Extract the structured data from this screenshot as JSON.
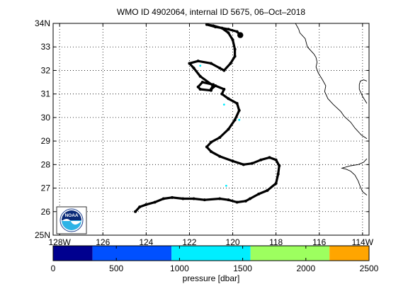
{
  "title": "WMO ID 4902064, internal ID 5675, 06–Oct–2018",
  "map": {
    "lon_range": [
      -128.3,
      -113.7
    ],
    "lat_range": [
      25,
      34
    ],
    "lon_ticks": [
      -128,
      -126,
      -124,
      -122,
      -120,
      -118,
      -116,
      -114
    ],
    "lon_tick_labels": [
      "128W",
      "126",
      "124",
      "122",
      "120",
      "118",
      "116",
      "114W"
    ],
    "lat_ticks": [
      25,
      26,
      27,
      28,
      29,
      30,
      31,
      32,
      33,
      34
    ],
    "lat_tick_labels": [
      "25N",
      "26",
      "27",
      "28",
      "29",
      "30",
      "31",
      "32",
      "33",
      "34N"
    ],
    "grid": true,
    "grid_style": "dotted",
    "coastline_color": "#000000",
    "track_color": "#000000",
    "coastline": [
      [
        -117.1,
        34.0
      ],
      [
        -116.95,
        33.75
      ],
      [
        -116.9,
        33.6
      ],
      [
        -116.65,
        33.35
      ],
      [
        -116.55,
        33.0
      ],
      [
        -116.25,
        32.7
      ],
      [
        -116.15,
        32.55
      ],
      [
        -116.1,
        32.35
      ],
      [
        -116.15,
        32.15
      ],
      [
        -116.05,
        31.9
      ],
      [
        -115.85,
        31.6
      ],
      [
        -115.7,
        31.35
      ],
      [
        -115.75,
        31.1
      ],
      [
        -115.6,
        30.8
      ],
      [
        -115.35,
        30.55
      ],
      [
        -115.0,
        30.25
      ],
      [
        -114.85,
        30.05
      ],
      [
        -114.55,
        29.8
      ],
      [
        -114.35,
        29.55
      ],
      [
        -114.05,
        29.25
      ],
      [
        -113.8,
        29.1
      ]
    ],
    "coast_upper_right": [
      [
        -113.8,
        31.55
      ],
      [
        -113.95,
        31.6
      ],
      [
        -114.1,
        31.55
      ],
      [
        -114.15,
        31.4
      ],
      [
        -114.15,
        31.2
      ],
      [
        -114.0,
        30.9
      ],
      [
        -113.8,
        30.6
      ]
    ],
    "coast_baja_tip": [
      [
        -113.8,
        26.7
      ],
      [
        -114.0,
        26.85
      ],
      [
        -114.1,
        27.05
      ],
      [
        -114.2,
        27.3
      ],
      [
        -114.35,
        27.55
      ],
      [
        -114.55,
        27.72
      ],
      [
        -114.75,
        27.8
      ],
      [
        -114.95,
        27.85
      ],
      [
        -114.55,
        27.95
      ],
      [
        -114.2,
        28.0
      ],
      [
        -113.95,
        28.1
      ],
      [
        -113.8,
        28.25
      ]
    ],
    "float_track": [
      [
        -124.5,
        26.0
      ],
      [
        -124.3,
        26.2
      ],
      [
        -124.0,
        26.3
      ],
      [
        -123.6,
        26.4
      ],
      [
        -123.2,
        26.55
      ],
      [
        -122.8,
        26.6
      ],
      [
        -122.3,
        26.55
      ],
      [
        -121.8,
        26.55
      ],
      [
        -121.3,
        26.5
      ],
      [
        -120.6,
        26.55
      ],
      [
        -120.2,
        26.5
      ],
      [
        -119.8,
        26.4
      ],
      [
        -119.4,
        26.45
      ],
      [
        -119.2,
        26.55
      ],
      [
        -118.8,
        26.75
      ],
      [
        -118.4,
        26.9
      ],
      [
        -118.0,
        27.2
      ],
      [
        -117.9,
        27.6
      ],
      [
        -117.85,
        27.95
      ],
      [
        -118.0,
        28.2
      ],
      [
        -118.3,
        28.3
      ],
      [
        -118.7,
        28.2
      ],
      [
        -119.1,
        28.05
      ],
      [
        -119.5,
        28.0
      ],
      [
        -120.0,
        28.15
      ],
      [
        -120.6,
        28.35
      ],
      [
        -121.0,
        28.55
      ],
      [
        -121.2,
        28.75
      ],
      [
        -121.0,
        28.95
      ],
      [
        -120.6,
        29.15
      ],
      [
        -120.2,
        29.5
      ],
      [
        -119.9,
        29.9
      ],
      [
        -119.7,
        30.3
      ],
      [
        -119.8,
        30.6
      ],
      [
        -120.2,
        30.8
      ],
      [
        -120.5,
        31.0
      ],
      [
        -120.4,
        31.2
      ],
      [
        -120.8,
        31.35
      ],
      [
        -121.0,
        31.2
      ],
      [
        -120.9,
        31.4
      ],
      [
        -121.4,
        31.5
      ],
      [
        -121.6,
        31.3
      ],
      [
        -121.5,
        31.2
      ],
      [
        -121.0,
        31.15
      ],
      [
        -120.9,
        31.35
      ],
      [
        -121.5,
        31.75
      ],
      [
        -121.8,
        32.1
      ],
      [
        -122.0,
        32.3
      ],
      [
        -121.6,
        32.4
      ],
      [
        -121.0,
        32.3
      ],
      [
        -120.6,
        32.1
      ],
      [
        -120.4,
        32.0
      ],
      [
        -120.1,
        32.3
      ],
      [
        -119.9,
        32.6
      ],
      [
        -119.9,
        32.9
      ],
      [
        -120.0,
        33.3
      ],
      [
        -120.2,
        33.6
      ],
      [
        -120.5,
        33.8
      ],
      [
        -120.9,
        33.9
      ],
      [
        -121.2,
        33.95
      ],
      [
        -120.8,
        33.85
      ],
      [
        -120.2,
        33.75
      ],
      [
        -119.8,
        33.65
      ],
      [
        -119.65,
        33.5
      ]
    ],
    "track_highlights": [
      [
        -121.5,
        32.2
      ],
      [
        -120.4,
        30.55
      ],
      [
        -120.3,
        27.1
      ],
      [
        -119.7,
        29.9
      ]
    ]
  },
  "logo": {
    "text": "NOAA",
    "colors": {
      "top": "#0a2a78",
      "bottom": "#2db3e6",
      "ring": "#ffffff"
    }
  },
  "colorbar": {
    "range": [
      0,
      2500
    ],
    "ticks": [
      0,
      500,
      1000,
      1500,
      2000,
      2500
    ],
    "tick_labels": [
      "0",
      "500",
      "1000",
      "1500",
      "2000",
      "2500"
    ],
    "bands": [
      {
        "from": 0,
        "to": 312,
        "color": "#00008f"
      },
      {
        "from": 312,
        "to": 937,
        "color": "#0050ff"
      },
      {
        "from": 937,
        "to": 1562,
        "color": "#00eeff"
      },
      {
        "from": 1562,
        "to": 2187,
        "color": "#9dff5f"
      },
      {
        "from": 2187,
        "to": 2500,
        "color": "#ffa500"
      }
    ],
    "label": "pressure [dbar]"
  }
}
